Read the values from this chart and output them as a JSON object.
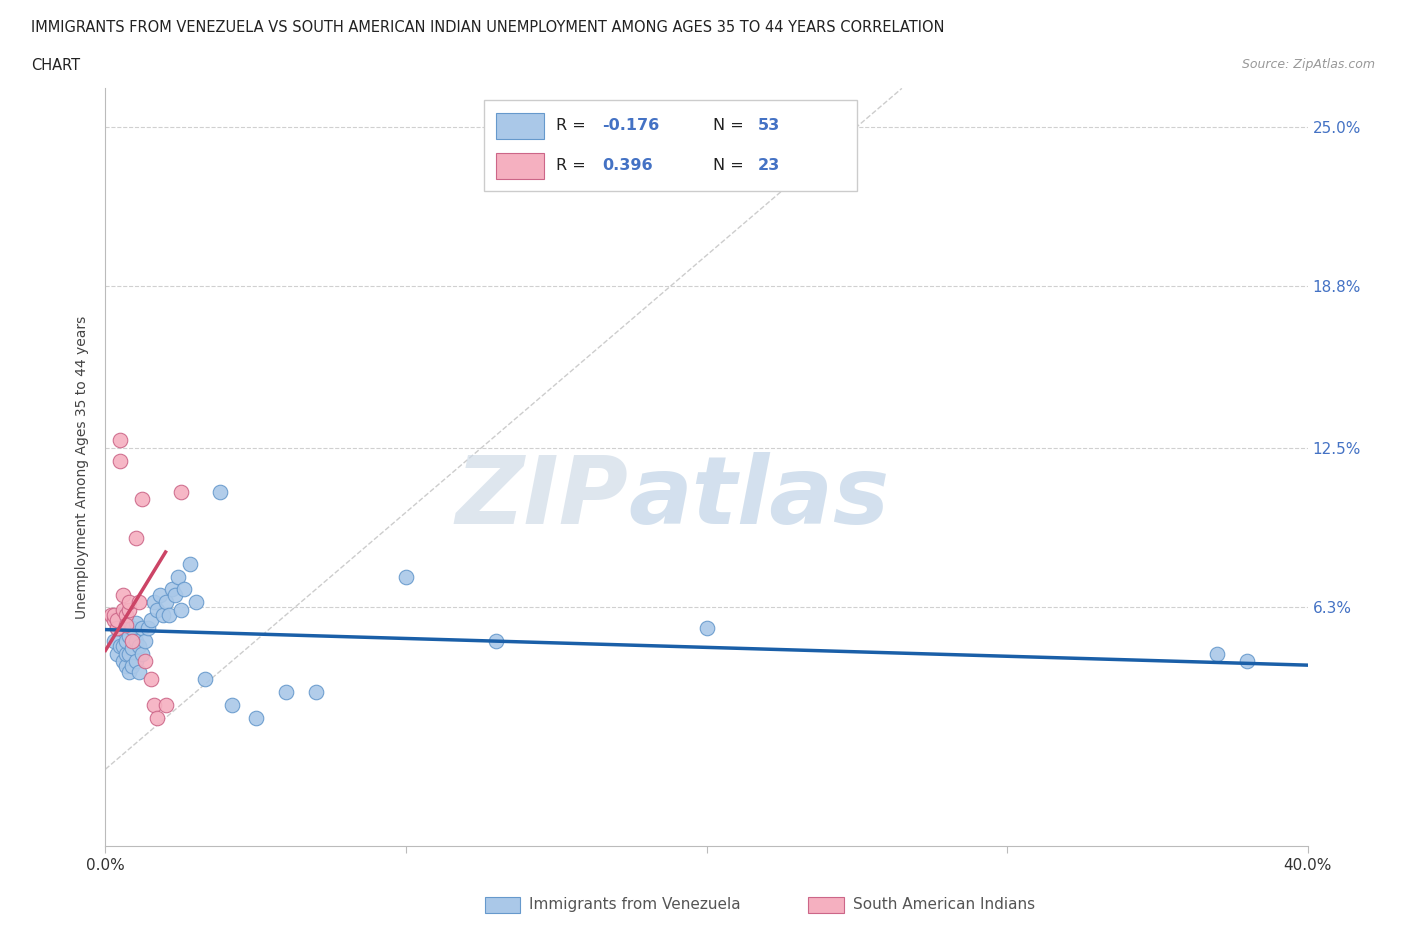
{
  "title_line1": "IMMIGRANTS FROM VENEZUELA VS SOUTH AMERICAN INDIAN UNEMPLOYMENT AMONG AGES 35 TO 44 YEARS CORRELATION",
  "title_line2": "CHART",
  "source": "Source: ZipAtlas.com",
  "ylabel": "Unemployment Among Ages 35 to 44 years",
  "xmin": 0.0,
  "xmax": 0.4,
  "ymin": -0.03,
  "ymax": 0.265,
  "ytick_positions": [
    0.0,
    0.063,
    0.125,
    0.188,
    0.25
  ],
  "ytick_labels": [
    "",
    "6.3%",
    "12.5%",
    "18.8%",
    "25.0%"
  ],
  "xtick_positions": [
    0.0,
    0.1,
    0.2,
    0.3,
    0.4
  ],
  "xtick_labels": [
    "0.0%",
    "",
    "",
    "",
    "40.0%"
  ],
  "blue_R": -0.176,
  "blue_N": 53,
  "pink_R": 0.396,
  "pink_N": 23,
  "blue_color": "#aac8e8",
  "blue_edge_color": "#6699cc",
  "blue_line_color": "#1a5fa8",
  "pink_color": "#f5b0c0",
  "pink_edge_color": "#cc6688",
  "pink_line_color": "#cc4466",
  "blue_scatter_x": [
    0.003,
    0.004,
    0.004,
    0.005,
    0.005,
    0.005,
    0.006,
    0.006,
    0.006,
    0.007,
    0.007,
    0.007,
    0.007,
    0.008,
    0.008,
    0.008,
    0.009,
    0.009,
    0.009,
    0.01,
    0.01,
    0.01,
    0.011,
    0.011,
    0.012,
    0.012,
    0.013,
    0.014,
    0.015,
    0.016,
    0.017,
    0.018,
    0.019,
    0.02,
    0.021,
    0.022,
    0.023,
    0.024,
    0.025,
    0.026,
    0.028,
    0.03,
    0.033,
    0.038,
    0.042,
    0.05,
    0.06,
    0.07,
    0.1,
    0.13,
    0.2,
    0.37,
    0.38
  ],
  "blue_scatter_y": [
    0.05,
    0.055,
    0.045,
    0.048,
    0.055,
    0.06,
    0.042,
    0.048,
    0.055,
    0.04,
    0.045,
    0.05,
    0.058,
    0.038,
    0.045,
    0.052,
    0.04,
    0.047,
    0.055,
    0.042,
    0.05,
    0.057,
    0.038,
    0.048,
    0.045,
    0.055,
    0.05,
    0.055,
    0.058,
    0.065,
    0.062,
    0.068,
    0.06,
    0.065,
    0.06,
    0.07,
    0.068,
    0.075,
    0.062,
    0.07,
    0.08,
    0.065,
    0.035,
    0.108,
    0.025,
    0.02,
    0.03,
    0.03,
    0.075,
    0.05,
    0.055,
    0.045,
    0.042
  ],
  "pink_scatter_x": [
    0.002,
    0.003,
    0.003,
    0.004,
    0.004,
    0.005,
    0.005,
    0.006,
    0.006,
    0.007,
    0.007,
    0.008,
    0.008,
    0.009,
    0.01,
    0.011,
    0.012,
    0.013,
    0.015,
    0.016,
    0.017,
    0.02,
    0.025
  ],
  "pink_scatter_y": [
    0.06,
    0.058,
    0.06,
    0.055,
    0.058,
    0.128,
    0.12,
    0.068,
    0.062,
    0.06,
    0.056,
    0.062,
    0.065,
    0.05,
    0.09,
    0.065,
    0.105,
    0.042,
    0.035,
    0.025,
    0.02,
    0.025,
    0.108
  ],
  "legend_blue_label": "Immigrants from Venezuela",
  "legend_pink_label": "South American Indians"
}
